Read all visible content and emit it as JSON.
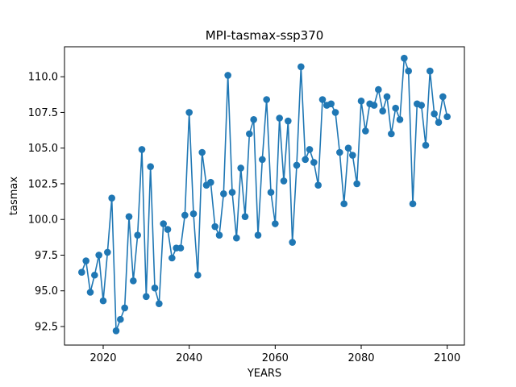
{
  "chart_data": {
    "type": "line",
    "title": "MPI-tasmax-ssp370",
    "xlabel": "YEARS",
    "ylabel": "tasmax",
    "xlim": [
      2011,
      2104
    ],
    "ylim": [
      91.2,
      112.1
    ],
    "xticks": [
      2020,
      2040,
      2060,
      2080,
      2100
    ],
    "xtick_labels": [
      "2020",
      "2040",
      "2060",
      "2080",
      "2100"
    ],
    "yticks": [
      92.5,
      95.0,
      97.5,
      100.0,
      102.5,
      105.0,
      107.5,
      110.0
    ],
    "ytick_labels": [
      "92.5",
      "95.0",
      "97.5",
      "100.0",
      "102.5",
      "105.0",
      "107.5",
      "110.0"
    ],
    "grid": false,
    "legend": "none",
    "series": [
      {
        "color": "#1f77b4",
        "marker": "circle",
        "x": [
          2015,
          2016,
          2017,
          2018,
          2019,
          2020,
          2021,
          2022,
          2023,
          2024,
          2025,
          2026,
          2027,
          2028,
          2029,
          2030,
          2031,
          2032,
          2033,
          2034,
          2035,
          2036,
          2037,
          2038,
          2039,
          2040,
          2041,
          2042,
          2043,
          2044,
          2045,
          2046,
          2047,
          2048,
          2049,
          2050,
          2051,
          2052,
          2053,
          2054,
          2055,
          2056,
          2057,
          2058,
          2059,
          2060,
          2061,
          2062,
          2063,
          2064,
          2065,
          2066,
          2067,
          2068,
          2069,
          2070,
          2071,
          2072,
          2073,
          2074,
          2075,
          2076,
          2077,
          2078,
          2079,
          2080,
          2081,
          2082,
          2083,
          2084,
          2085,
          2086,
          2087,
          2088,
          2089,
          2090,
          2091,
          2092,
          2093,
          2094,
          2095,
          2096,
          2097,
          2098,
          2099,
          2100
        ],
        "y": [
          96.3,
          97.1,
          94.9,
          96.1,
          97.5,
          94.3,
          97.7,
          101.5,
          92.2,
          93.0,
          93.8,
          100.2,
          95.7,
          98.9,
          104.9,
          94.6,
          103.7,
          95.2,
          94.1,
          99.7,
          99.3,
          97.3,
          98.0,
          98.0,
          100.3,
          107.5,
          100.4,
          96.1,
          104.7,
          102.4,
          102.6,
          99.5,
          98.9,
          101.8,
          110.1,
          101.9,
          98.7,
          103.6,
          100.2,
          106.0,
          107.0,
          98.9,
          104.2,
          108.4,
          101.9,
          99.7,
          107.1,
          102.7,
          106.9,
          98.4,
          103.8,
          110.7,
          104.2,
          104.9,
          104.0,
          102.4,
          108.4,
          108.0,
          108.1,
          107.5,
          104.7,
          101.1,
          105.0,
          104.5,
          102.5,
          108.3,
          106.2,
          108.1,
          108.0,
          109.1,
          107.6,
          108.6,
          106.0,
          107.8,
          107.0,
          111.3,
          110.4,
          101.1,
          108.1,
          108.0,
          105.2,
          110.4,
          107.4,
          106.8,
          108.6,
          107.2
        ]
      }
    ]
  }
}
